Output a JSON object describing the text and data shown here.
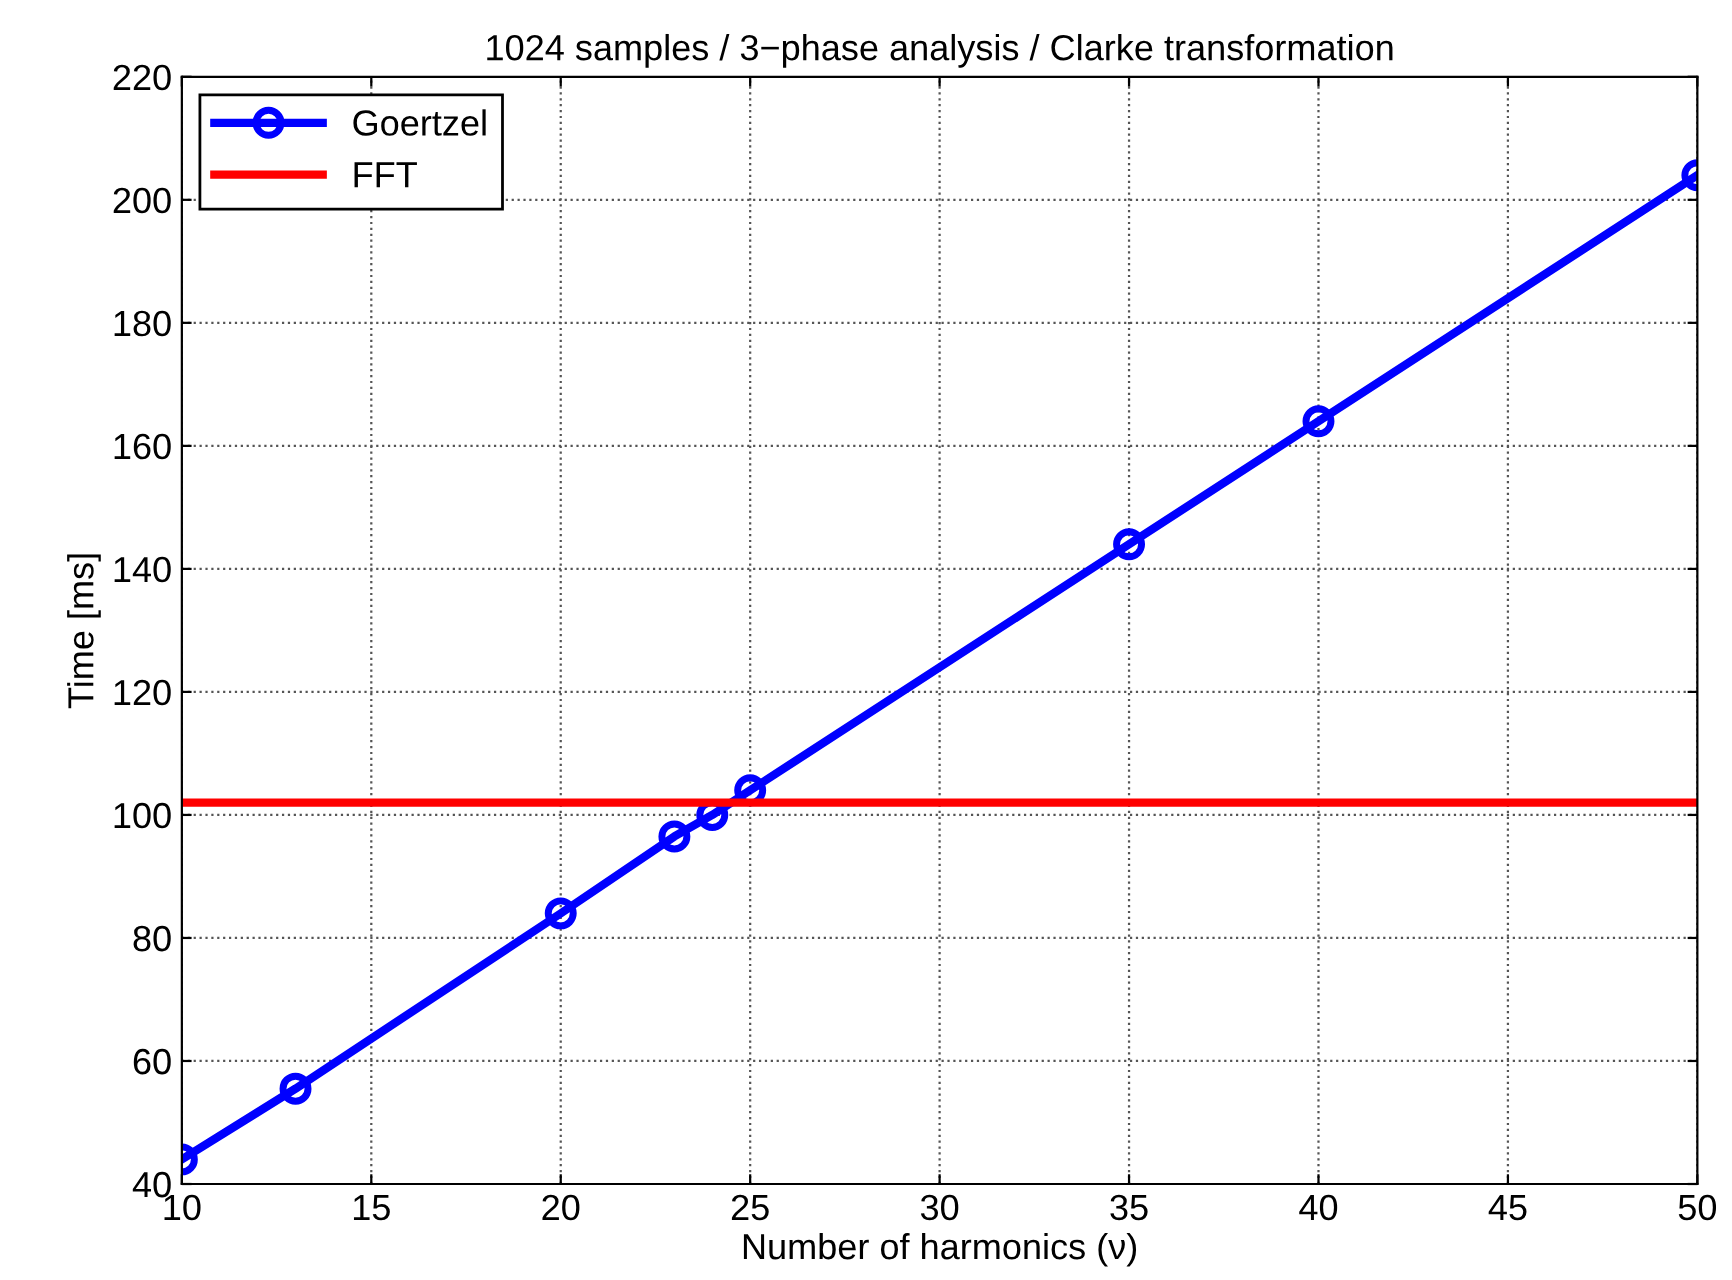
{
  "chart_data": {
    "type": "line",
    "title": "1024 samples / 3−phase analysis / Clarke transformation",
    "xlabel": "Number of harmonics (ν)",
    "ylabel": "Time [ms]",
    "series": [
      {
        "name": "Goertzel",
        "color": "#0000ff",
        "x": [
          10,
          13,
          20,
          23,
          24,
          25,
          35,
          40,
          50
        ],
        "values": [
          44,
          55.5,
          84,
          96.5,
          100,
          104,
          144,
          164,
          204
        ],
        "marker": "circle"
      },
      {
        "name": "FFT",
        "color": "#ff0000",
        "x": [
          10,
          50
        ],
        "values": [
          102,
          102
        ],
        "marker": "none"
      }
    ],
    "xlim": [
      10,
      50
    ],
    "xticks": [
      10,
      15,
      20,
      25,
      30,
      35,
      40,
      45,
      50
    ],
    "ylim": [
      40,
      220
    ],
    "yticks": [
      40,
      60,
      80,
      100,
      120,
      140,
      160,
      180,
      200,
      220
    ],
    "grid": true,
    "legend": "top left",
    "line_style": "solid"
  }
}
